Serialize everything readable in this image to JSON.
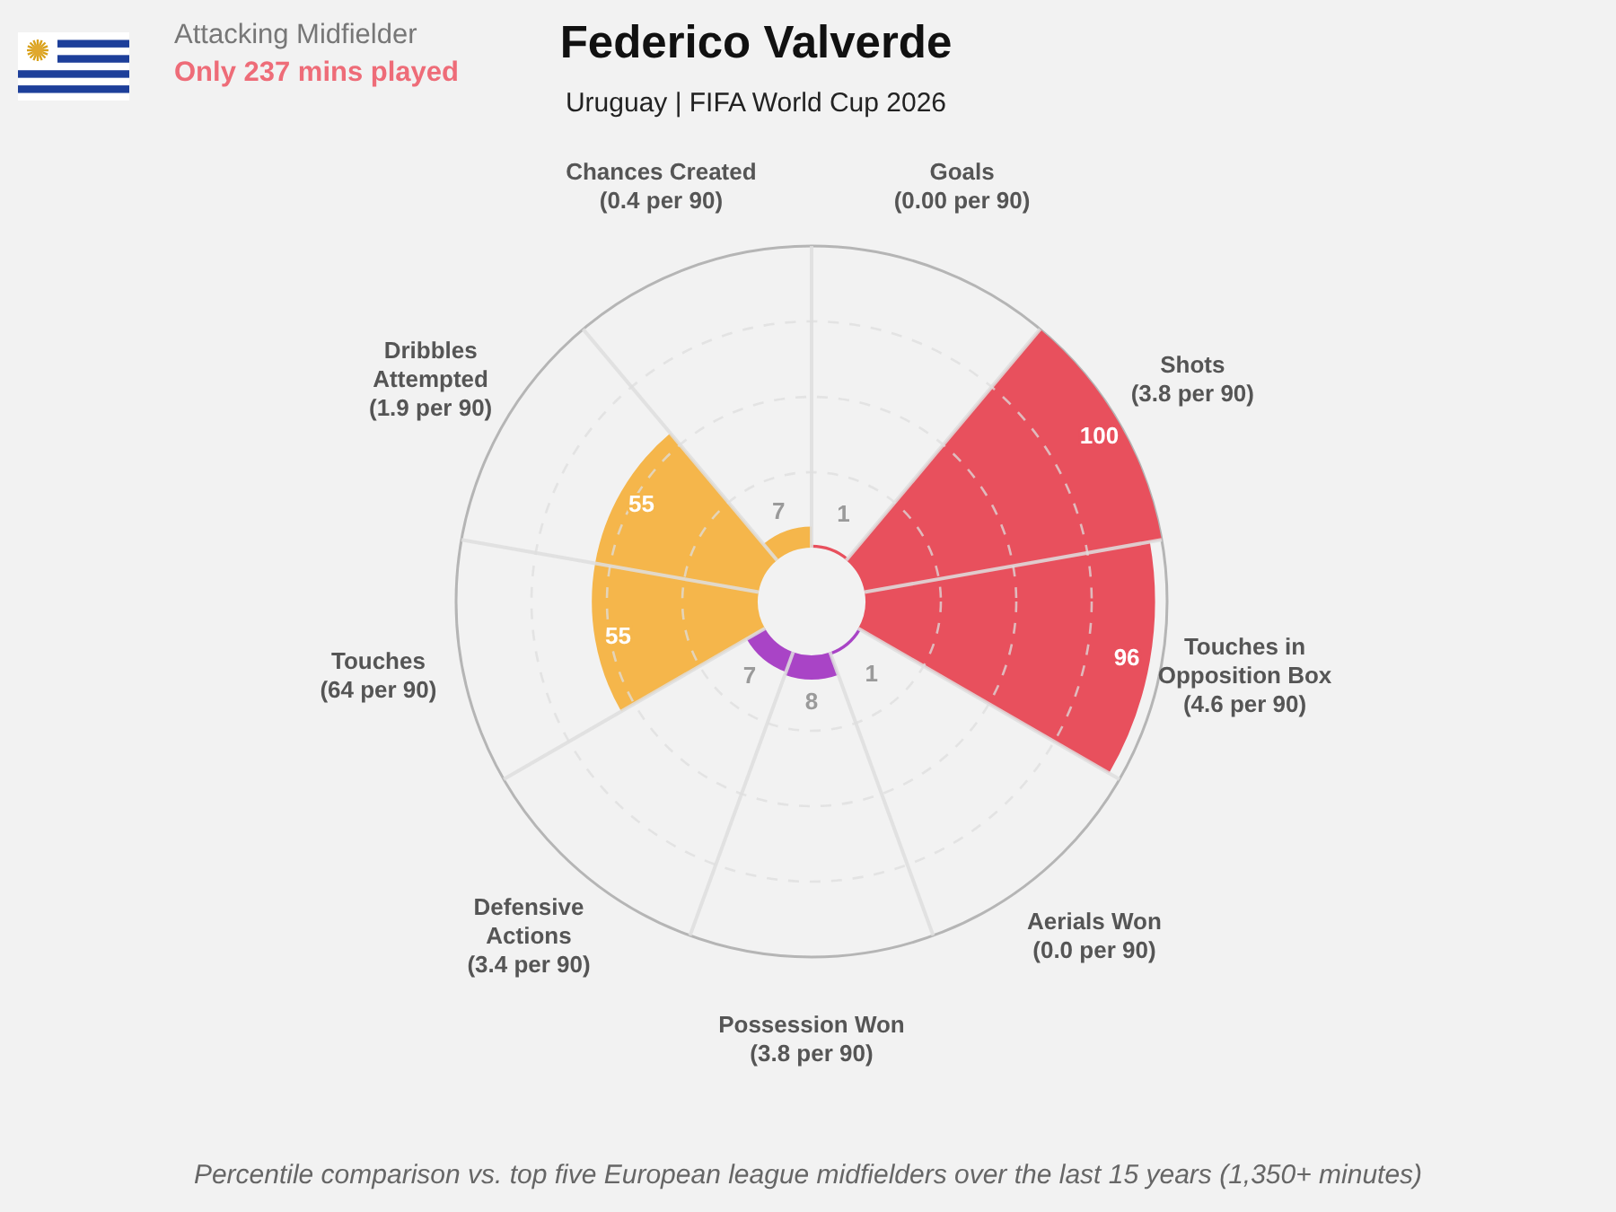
{
  "chart_data": {
    "type": "other",
    "title": "Federico Valverde",
    "subtitle": "Uruguay | FIFA World Cup 2026",
    "categories": [
      "Goals\n(0.00 per 90)",
      "Shots\n(3.8 per 90)",
      "Touches in\nOpposition Box\n(4.6 per 90)",
      "Aerials Won\n(0.0 per 90)",
      "Possession Won\n(3.8 per 90)",
      "Defensive\nActions\n(3.4 per 90)",
      "Touches\n(64 per 90)",
      "Dribbles\nAttempted\n(1.9 per 90)",
      "Chances Created\n(0.4 per 90)"
    ],
    "values": [
      1,
      100,
      96,
      1,
      8,
      7,
      55,
      55,
      7
    ],
    "colors": [
      "#e8505d",
      "#e8505d",
      "#e8505d",
      "#a944c6",
      "#a944c6",
      "#a944c6",
      "#f5b64b",
      "#f5b64b",
      "#f5b64b"
    ],
    "data_labels": true,
    "annotations": [
      "Attacking Midfielder",
      "Only 237 mins played",
      "Percentile comparison vs. top five European league midfielders over the last 15 years (1,350+ minutes)"
    ]
  }
}
